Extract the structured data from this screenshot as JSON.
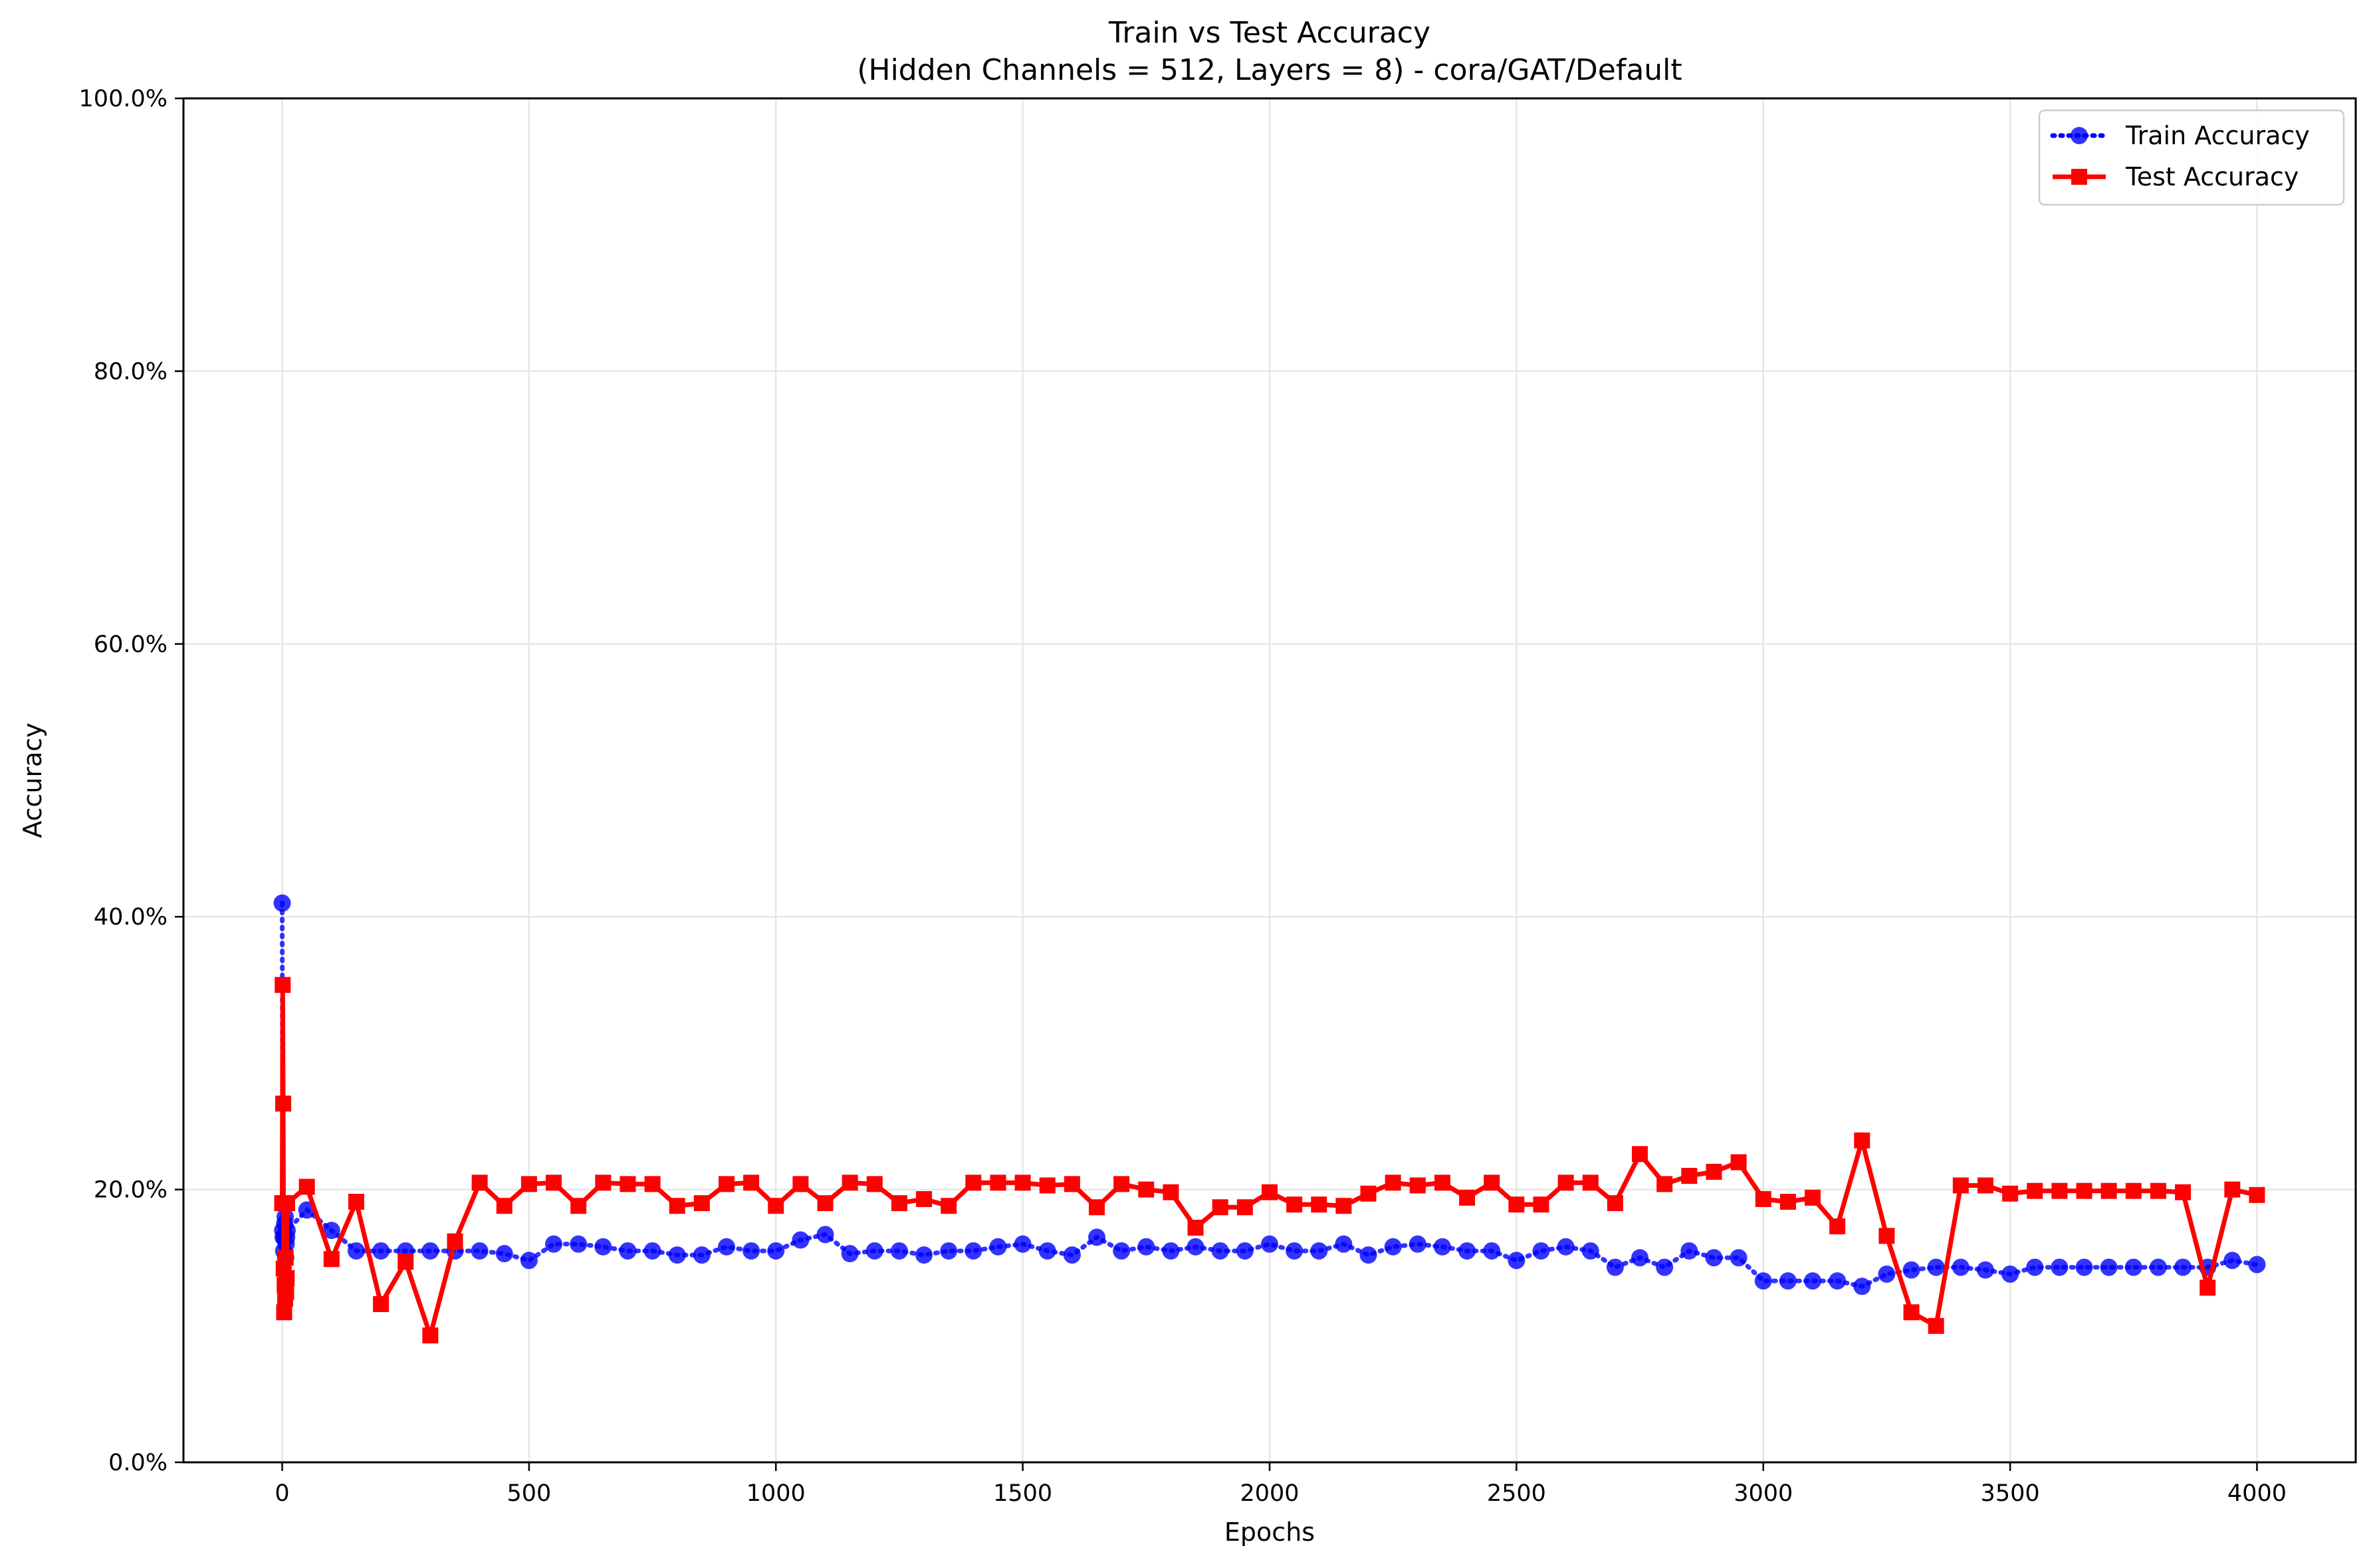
{
  "chart_data": {
    "type": "line",
    "title": "Train vs Test Accuracy",
    "subtitle": "(Hidden Channels = 512, Layers = 8) - cora/GAT/Default",
    "xlabel": "Epochs",
    "ylabel": "Accuracy",
    "xlim": [
      -200,
      4200
    ],
    "ylim": [
      0,
      100
    ],
    "xticks": [
      0,
      500,
      1000,
      1500,
      2000,
      2500,
      3000,
      3500,
      4000
    ],
    "xtick_labels": [
      "0",
      "500",
      "1000",
      "1500",
      "2000",
      "2500",
      "3000",
      "3500",
      "4000"
    ],
    "yticks": [
      0,
      20,
      40,
      60,
      80,
      100
    ],
    "ytick_labels": [
      "0.0%",
      "20.0%",
      "40.0%",
      "60.0%",
      "80.0%",
      "100.0%"
    ],
    "grid": true,
    "legend": "top-right",
    "x": [
      0,
      1,
      2,
      3,
      4,
      5,
      6,
      7,
      8,
      9,
      10,
      50,
      100,
      150,
      200,
      250,
      300,
      350,
      400,
      450,
      500,
      550,
      600,
      650,
      700,
      750,
      800,
      850,
      900,
      950,
      1000,
      1050,
      1100,
      1150,
      1200,
      1250,
      1300,
      1350,
      1400,
      1450,
      1500,
      1550,
      1600,
      1650,
      1700,
      1750,
      1800,
      1850,
      1900,
      1950,
      2000,
      2050,
      2100,
      2150,
      2200,
      2250,
      2300,
      2350,
      2400,
      2450,
      2500,
      2550,
      2600,
      2650,
      2700,
      2750,
      2800,
      2850,
      2900,
      2950,
      3000,
      3050,
      3100,
      3150,
      3200,
      3250,
      3300,
      3350,
      3400,
      3450,
      3500,
      3550,
      3600,
      3650,
      3700,
      3750,
      3800,
      3850,
      3900,
      3950,
      4000
    ],
    "series": [
      {
        "name": "Train Accuracy",
        "color": "#0000ff",
        "linestyle": "dotted",
        "marker": "circle",
        "values": [
          41.0,
          17.0,
          16.5,
          15.5,
          16.5,
          17.5,
          18.0,
          15.0,
          16.0,
          16.5,
          17.0,
          18.5,
          17.0,
          15.5,
          15.5,
          15.5,
          15.5,
          15.5,
          15.5,
          15.3,
          14.8,
          16.0,
          16.0,
          15.8,
          15.5,
          15.5,
          15.2,
          15.2,
          15.8,
          15.5,
          15.5,
          16.3,
          16.7,
          15.3,
          15.5,
          15.5,
          15.2,
          15.5,
          15.5,
          15.8,
          16.0,
          15.5,
          15.2,
          16.5,
          15.5,
          15.8,
          15.5,
          15.8,
          15.5,
          15.5,
          16.0,
          15.5,
          15.5,
          16.0,
          15.2,
          15.8,
          16.0,
          15.8,
          15.5,
          15.5,
          14.8,
          15.5,
          15.8,
          15.5,
          14.3,
          15.0,
          14.3,
          15.5,
          15.0,
          15.0,
          13.3,
          13.3,
          13.3,
          13.3,
          12.9,
          13.8,
          14.1,
          14.3,
          14.3,
          14.1,
          13.8,
          14.3,
          14.3,
          14.3,
          14.3,
          14.3,
          14.3,
          14.3,
          14.3,
          14.8,
          14.5
        ]
      },
      {
        "name": "Test Accuracy",
        "color": "#ff0000",
        "linestyle": "solid",
        "marker": "square",
        "values": [
          19.0,
          35.0,
          26.3,
          14.2,
          11.0,
          13.0,
          12.0,
          15.0,
          12.5,
          13.5,
          19.0,
          20.2,
          14.9,
          19.1,
          11.6,
          14.7,
          9.3,
          16.2,
          20.5,
          18.8,
          20.4,
          20.5,
          18.8,
          20.5,
          20.4,
          20.4,
          18.8,
          19.0,
          20.4,
          20.5,
          18.8,
          20.4,
          19.0,
          20.5,
          20.4,
          19.0,
          19.3,
          18.8,
          20.5,
          20.5,
          20.5,
          20.3,
          20.4,
          18.7,
          20.4,
          20.0,
          19.8,
          17.2,
          18.7,
          18.7,
          19.8,
          18.9,
          18.9,
          18.8,
          19.7,
          20.5,
          20.3,
          20.5,
          19.4,
          20.5,
          18.9,
          18.9,
          20.5,
          20.5,
          19.0,
          22.6,
          20.4,
          21.0,
          21.3,
          22.0,
          19.3,
          19.1,
          19.4,
          17.3,
          23.6,
          16.6,
          11.0,
          10.0,
          20.3,
          20.3,
          19.7,
          19.9,
          19.9,
          19.9,
          19.9,
          19.9,
          19.9,
          19.8,
          12.8,
          20.0,
          19.6
        ]
      }
    ]
  }
}
